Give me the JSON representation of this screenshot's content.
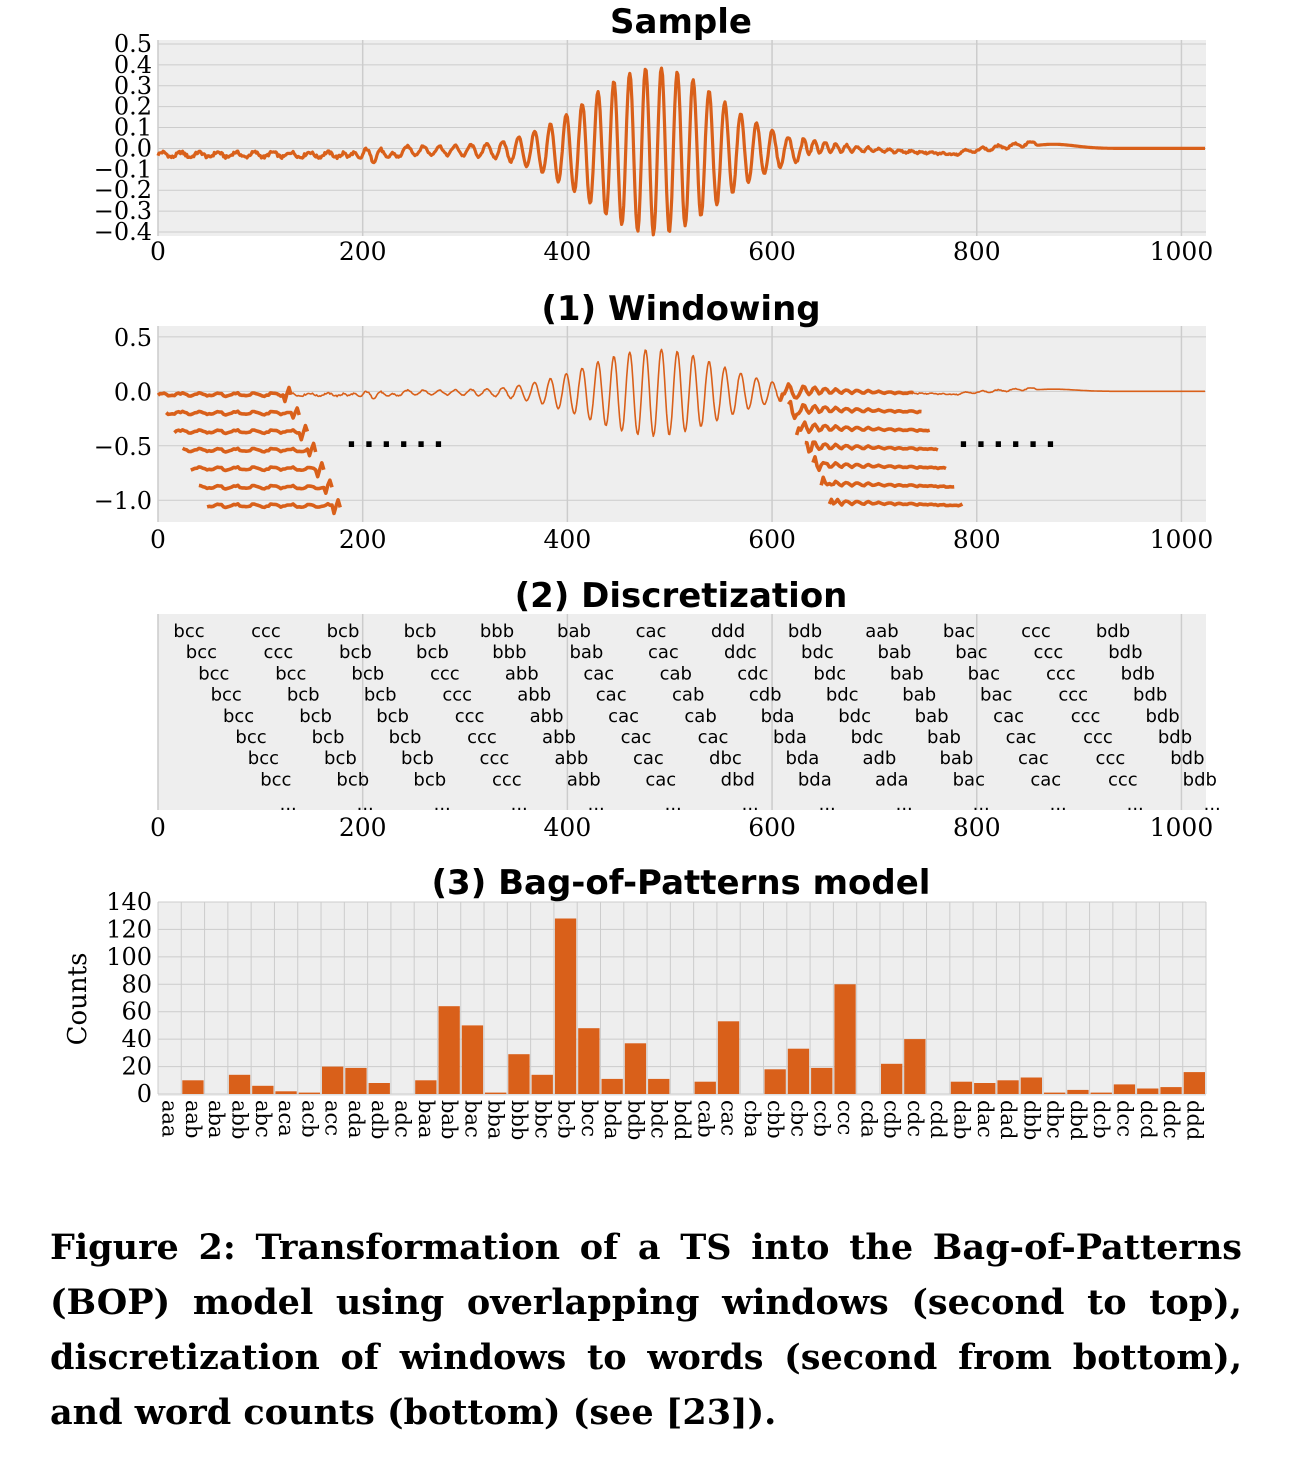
{
  "colors": {
    "series": "#d9601a",
    "panel_bg": "#eeeeee",
    "grid": "#cccccc"
  },
  "caption": "Figure 2: Transformation of a TS into the Bag-of-Patterns (BOP) model using overlapping windows (second to top), dis­cretization of windows to words (second from bottom), and word counts (bottom) (see [23]).",
  "chart_data": [
    {
      "type": "line",
      "title": "Sample",
      "x_range": [
        0,
        1024
      ],
      "ylim": [
        -0.4,
        0.5
      ],
      "xticks": [
        "0",
        "200",
        "400",
        "600",
        "800",
        "1000"
      ],
      "yticks": [
        "0.5",
        "0.4",
        "0.3",
        "0.2",
        "0.1",
        "0.0",
        "−0.1",
        "−0.2",
        "−0.3",
        "−0.4"
      ],
      "grid": true,
      "series_description": "single time series, length 1024, low-amplitude noise with oscillations growing to about ±0.4 near x≈480, then decaying"
    },
    {
      "type": "line",
      "title": "(1) Windowing",
      "x_range": [
        0,
        1024
      ],
      "ylim": [
        -1.2,
        0.6
      ],
      "xticks": [
        "0",
        "200",
        "400",
        "600",
        "800",
        "1000"
      ],
      "yticks": [
        "0.5",
        "0.0",
        "−0.5",
        "−1.0"
      ],
      "grid": true,
      "windows_left": {
        "start": [
          0,
          8,
          16,
          24,
          32,
          40,
          48
        ],
        "length": 130
      },
      "windows_right": {
        "start": [
          608,
          616,
          624,
          632,
          640,
          648,
          656
        ],
        "length": 130
      },
      "ellipsis_left": "......",
      "ellipsis_right": "......"
    },
    {
      "type": "table",
      "title": "(2) Discretization",
      "x_range": [
        0,
        1024
      ],
      "xticks": [
        "0",
        "200",
        "400",
        "600",
        "800",
        "1000"
      ],
      "ellipsis": "...",
      "columns": [
        [
          "bcc",
          "bcc",
          "bcc",
          "bcc",
          "bcc",
          "bcc",
          "bcc",
          "bcc"
        ],
        [
          "ccc",
          "ccc",
          "bcc",
          "bcb",
          "bcb",
          "bcb",
          "bcb",
          "bcb"
        ],
        [
          "bcb",
          "bcb",
          "bcb",
          "bcb",
          "bcb",
          "bcb",
          "bcb",
          "bcb"
        ],
        [
          "bcb",
          "bcb",
          "ccc",
          "ccc",
          "ccc",
          "ccc",
          "ccc",
          "ccc"
        ],
        [
          "bbb",
          "bbb",
          "abb",
          "abb",
          "abb",
          "abb",
          "abb",
          "abb"
        ],
        [
          "bab",
          "bab",
          "cac",
          "cac",
          "cac",
          "cac",
          "cac",
          "cac"
        ],
        [
          "cac",
          "cac",
          "cab",
          "cab",
          "cab",
          "cac",
          "dbc",
          "dbd"
        ],
        [
          "ddd",
          "ddc",
          "cdc",
          "cdb",
          "bda",
          "bda",
          "bda",
          "bda"
        ],
        [
          "bdb",
          "bdc",
          "bdc",
          "bdc",
          "bdc",
          "bdc",
          "adb",
          "ada"
        ],
        [
          "aab",
          "bab",
          "bab",
          "bab",
          "bab",
          "bab",
          "bab",
          "bac"
        ],
        [
          "bac",
          "bac",
          "bac",
          "bac",
          "cac",
          "cac",
          "cac",
          "cac"
        ],
        [
          "ccc",
          "ccc",
          "ccc",
          "ccc",
          "ccc",
          "ccc",
          "ccc",
          "ccc"
        ],
        [
          "bdb",
          "bdb",
          "bdb",
          "bdb",
          "bdb",
          "bdb",
          "bdb",
          "bdb"
        ]
      ]
    },
    {
      "type": "bar",
      "title": "(3) Bag-of-Patterns model",
      "ylabel": "Counts",
      "ylim": [
        0,
        140
      ],
      "yticks": [
        "0",
        "20",
        "40",
        "60",
        "80",
        "100",
        "120",
        "140"
      ],
      "grid": true,
      "categories": [
        "aaa",
        "aab",
        "aba",
        "abb",
        "abc",
        "aca",
        "acb",
        "acc",
        "ada",
        "adb",
        "adc",
        "baa",
        "bab",
        "bac",
        "bba",
        "bbb",
        "bbc",
        "bcb",
        "bcc",
        "bda",
        "bdb",
        "bdc",
        "bdd",
        "cab",
        "cac",
        "cba",
        "cbb",
        "cbc",
        "ccb",
        "ccc",
        "cda",
        "cdb",
        "cdc",
        "cdd",
        "dab",
        "dac",
        "dad",
        "dbb",
        "dbc",
        "dbd",
        "dcb",
        "dcc",
        "dcd",
        "ddc",
        "ddd"
      ],
      "values": [
        0,
        10,
        0,
        14,
        6,
        2,
        1,
        20,
        19,
        8,
        0,
        10,
        64,
        50,
        1,
        29,
        14,
        128,
        48,
        11,
        37,
        11,
        0,
        9,
        53,
        0,
        18,
        33,
        19,
        80,
        0,
        22,
        40,
        0,
        9,
        8,
        10,
        12,
        1,
        3,
        1,
        7,
        4,
        5,
        16
      ]
    }
  ]
}
